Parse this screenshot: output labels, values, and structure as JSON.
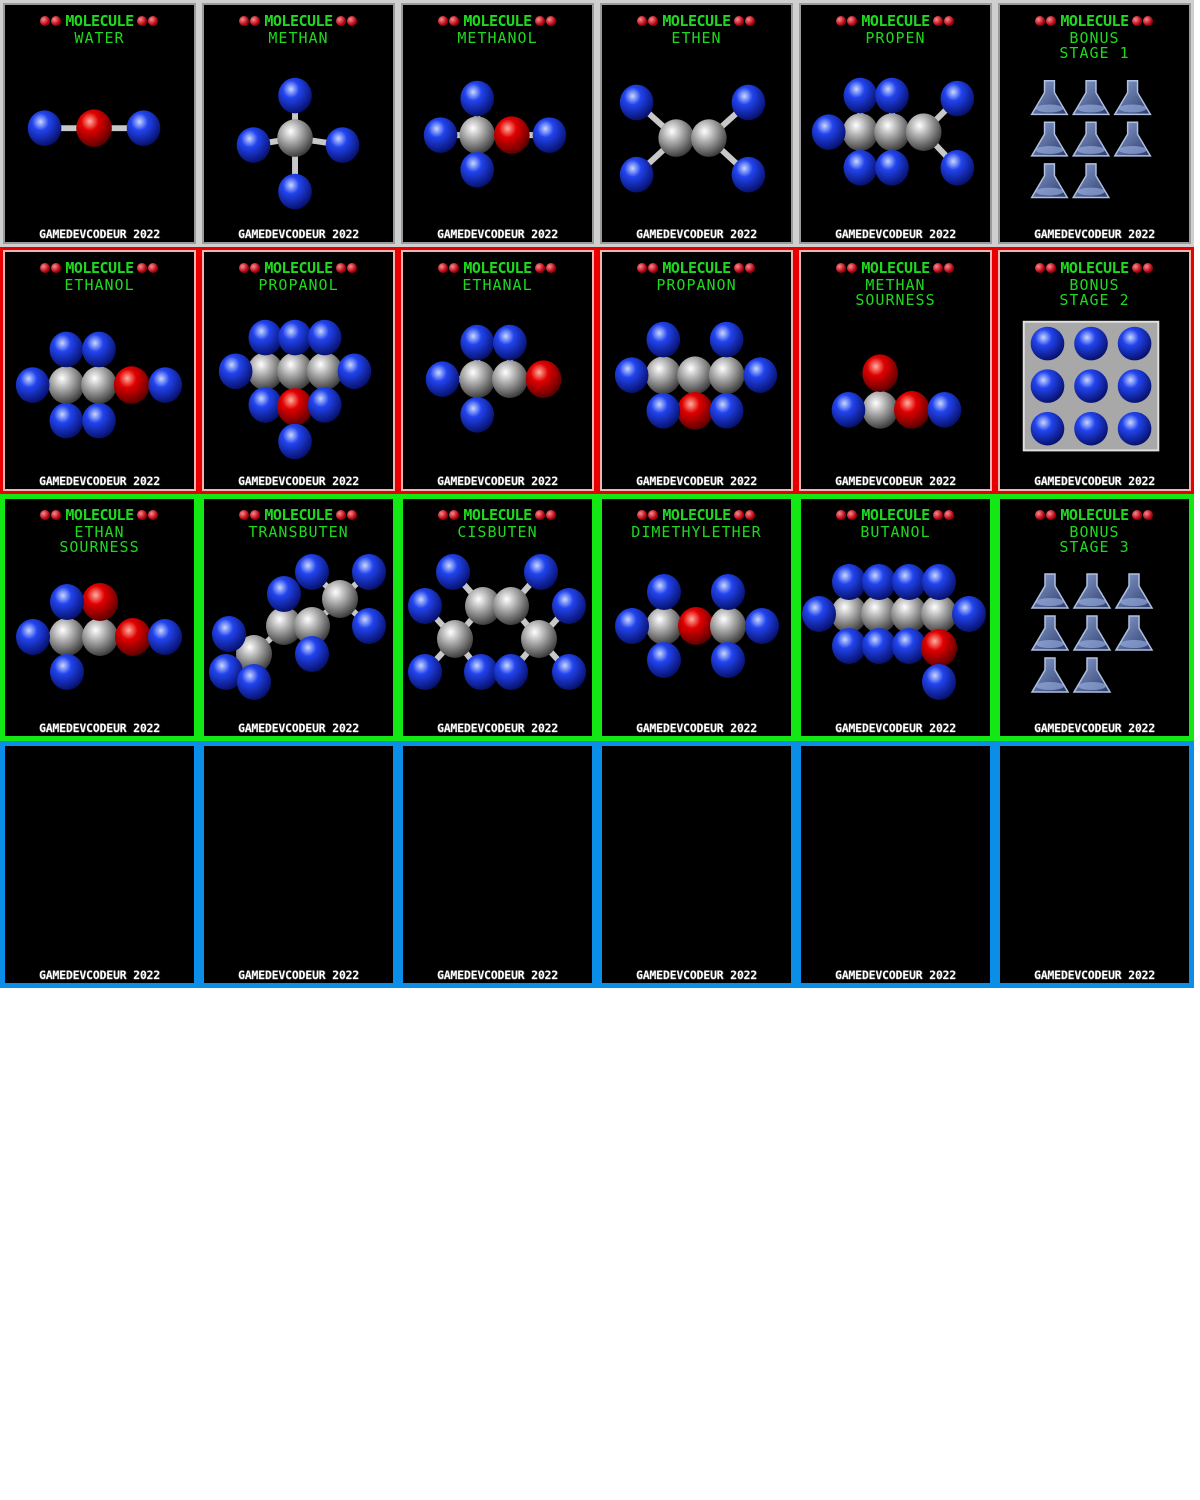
{
  "header_word": "MOLECULE",
  "footer_text": "GAMEDEVCODEUR 2022",
  "colors": {
    "row_1": "#cfcfcf",
    "row_2": "#e80000",
    "row_3": "#14e814",
    "row_4": "#0a8ee8",
    "title": "#1fd81f",
    "atom_h": "#1f3fe0",
    "atom_c": "#b8b8b8",
    "atom_o": "#e00000"
  },
  "rows": [
    {
      "cards": [
        {
          "name": "WATER",
          "art": "water"
        },
        {
          "name": "METHAN",
          "art": "methan"
        },
        {
          "name": "METHANOL",
          "art": "methanol"
        },
        {
          "name": "ETHEN",
          "art": "ethen"
        },
        {
          "name": "PROPEN",
          "art": "propen"
        },
        {
          "name": "BONUS\nSTAGE 1",
          "art": "flasks"
        }
      ]
    },
    {
      "cards": [
        {
          "name": "ETHANOL",
          "art": "ethanol"
        },
        {
          "name": "PROPANOL",
          "art": "propanol"
        },
        {
          "name": "ETHANAL",
          "art": "ethanal"
        },
        {
          "name": "PROPANON",
          "art": "propanon"
        },
        {
          "name": "METHAN\nSOURNESS",
          "art": "methansour"
        },
        {
          "name": "BONUS\nSTAGE 2",
          "art": "grid"
        }
      ]
    },
    {
      "cards": [
        {
          "name": "ETHAN\nSOURNESS",
          "art": "ethansour"
        },
        {
          "name": "TRANSBUTEN",
          "art": "transbuten"
        },
        {
          "name": "CISBUTEN",
          "art": "cisbuten"
        },
        {
          "name": "DIMETHYLETHER",
          "art": "dimethylether"
        },
        {
          "name": "BUTANOL",
          "art": "butanol"
        },
        {
          "name": "BONUS\nSTAGE 3",
          "art": "flasks"
        }
      ]
    },
    {
      "cards": [
        {
          "name": "",
          "art": ""
        },
        {
          "name": "",
          "art": ""
        },
        {
          "name": "",
          "art": ""
        },
        {
          "name": "",
          "art": ""
        },
        {
          "name": "",
          "art": ""
        },
        {
          "name": "",
          "art": ""
        }
      ]
    }
  ]
}
